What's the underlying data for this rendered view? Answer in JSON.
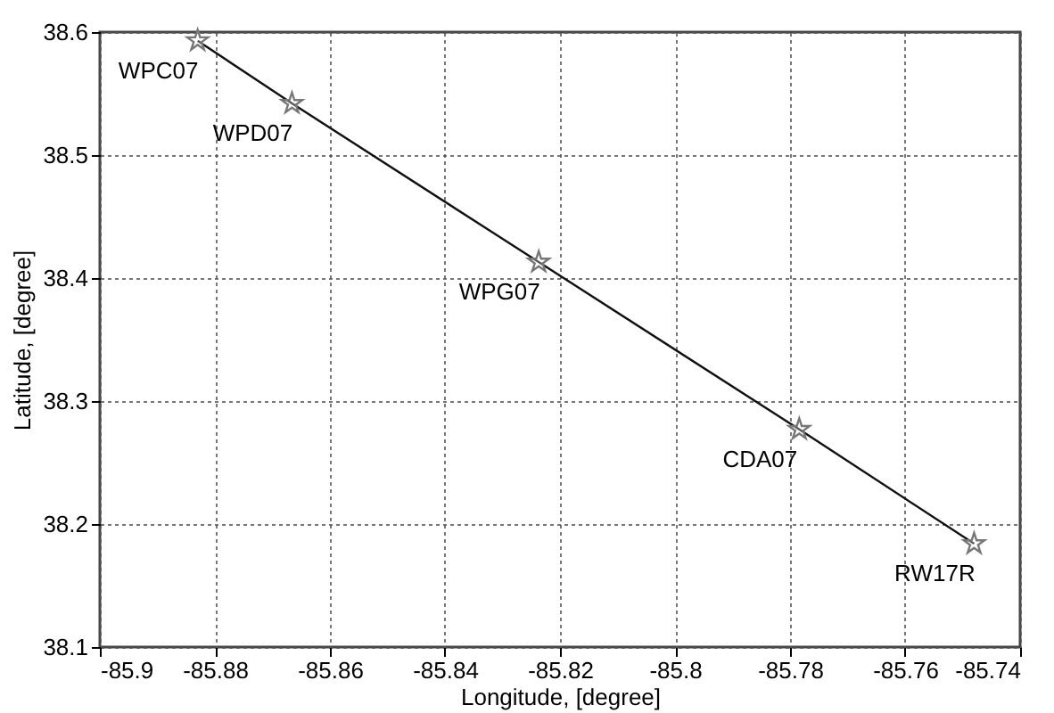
{
  "chart_data": {
    "type": "line",
    "xlabel": "Longitude, [degree]",
    "ylabel": "Latitude, [degree]",
    "x": [
      -85.883,
      -85.8666,
      -85.8237,
      -85.7784,
      -85.748
    ],
    "series": [
      {
        "color": "#111111",
        "values": [
          38.593,
          38.542,
          38.413,
          38.277,
          38.184
        ]
      }
    ],
    "marker": "star",
    "line_style": "solid",
    "grid": true,
    "xlim": [
      -85.9,
      -85.74
    ],
    "xticks": [
      -85.9,
      -85.88,
      -85.86,
      -85.84,
      -85.82,
      -85.8,
      -85.78,
      -85.76,
      -85.74
    ],
    "ylim": [
      38.1,
      38.6
    ],
    "yticks": [
      38.1,
      38.2,
      38.3,
      38.4,
      38.5,
      38.6
    ],
    "annotations": [
      {
        "text": "WPC07",
        "x": -85.883,
        "y": 38.593
      },
      {
        "text": "WPD07",
        "x": -85.8666,
        "y": 38.542
      },
      {
        "text": "WPG07",
        "x": -85.8237,
        "y": 38.413
      },
      {
        "text": "CDA07",
        "x": -85.7784,
        "y": 38.277
      },
      {
        "text": "RW17R",
        "x": -85.748,
        "y": 38.184
      }
    ]
  }
}
